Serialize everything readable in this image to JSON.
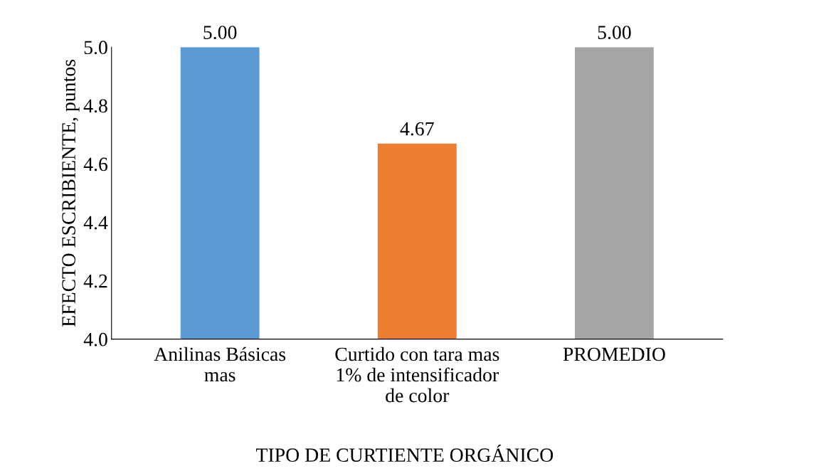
{
  "chart_data": {
    "type": "bar",
    "categories": [
      "Anilinas Básicas\nmas",
      "Curtido con tara mas\n1% de intensificador\nde color",
      "PROMEDIO"
    ],
    "values": [
      5.0,
      4.67,
      5.0
    ],
    "colors": [
      "#5b9bd5",
      "#ed7d31",
      "#a5a5a5"
    ],
    "value_labels": [
      "5.00",
      "4.67",
      "5.00"
    ],
    "xlabel": "TIPO DE CURTIENTE ORGÁNICO",
    "ylabel": "EFECTO ESCRIBIENTE, puntos",
    "ylim": [
      4.0,
      5.0
    ],
    "yticks": [
      {
        "value": 4.0,
        "label": "4.0"
      },
      {
        "value": 4.2,
        "label": "4.2"
      },
      {
        "value": 4.4,
        "label": "4.4"
      },
      {
        "value": 4.6,
        "label": "4.6"
      },
      {
        "value": 4.8,
        "label": "4.8"
      },
      {
        "value": 5.0,
        "label": "5.0"
      }
    ],
    "grid": false,
    "legend": false
  }
}
